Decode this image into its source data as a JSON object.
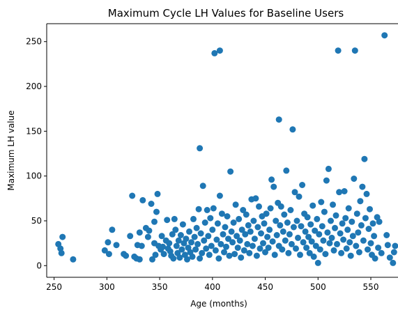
{
  "chart_data": {
    "type": "scatter",
    "title": "Maximum Cycle LH Values for Baseline Users",
    "xlabel": "Age (months)",
    "ylabel": "Maximum LH value",
    "xlim": [
      243,
      583
    ],
    "ylim": [
      -13,
      270
    ],
    "xticks": [
      250,
      300,
      350,
      400,
      450,
      500,
      550
    ],
    "yticks": [
      0,
      50,
      100,
      150,
      200,
      250
    ],
    "grid": false,
    "legend": "none",
    "marker_color": "#1f77b4",
    "series": [
      {
        "points": [
          [
            254,
            24
          ],
          [
            256,
            19
          ],
          [
            257,
            14
          ],
          [
            258,
            32
          ],
          [
            268,
            7
          ],
          [
            298,
            17
          ],
          [
            302,
            13
          ],
          [
            301,
            26
          ],
          [
            305,
            40
          ],
          [
            309,
            23
          ],
          [
            316,
            13
          ],
          [
            318,
            11
          ],
          [
            322,
            33
          ],
          [
            324,
            78
          ],
          [
            326,
            10
          ],
          [
            328,
            8
          ],
          [
            329,
            23
          ],
          [
            331,
            7
          ],
          [
            331,
            37
          ],
          [
            333,
            22
          ],
          [
            334,
            73
          ],
          [
            337,
            42
          ],
          [
            339,
            32
          ],
          [
            340,
            39
          ],
          [
            342,
            69
          ],
          [
            343,
            7
          ],
          [
            345,
            25
          ],
          [
            345,
            49
          ],
          [
            346,
            12
          ],
          [
            347,
            60
          ],
          [
            348,
            80
          ],
          [
            349,
            22
          ],
          [
            351,
            18
          ],
          [
            352,
            33
          ],
          [
            353,
            21
          ],
          [
            354,
            13
          ],
          [
            356,
            28
          ],
          [
            357,
            51
          ],
          [
            358,
            19
          ],
          [
            359,
            25
          ],
          [
            360,
            16
          ],
          [
            361,
            11
          ],
          [
            362,
            35
          ],
          [
            363,
            8
          ],
          [
            364,
            52
          ],
          [
            365,
            40
          ],
          [
            366,
            22
          ],
          [
            367,
            14
          ],
          [
            368,
            28
          ],
          [
            369,
            9
          ],
          [
            370,
            34
          ],
          [
            371,
            18
          ],
          [
            372,
            46
          ],
          [
            373,
            25
          ],
          [
            374,
            12
          ],
          [
            375,
            30
          ],
          [
            376,
            7
          ],
          [
            377,
            20
          ],
          [
            378,
            38
          ],
          [
            379,
            15
          ],
          [
            380,
            26
          ],
          [
            381,
            10
          ],
          [
            382,
            52
          ],
          [
            383,
            32
          ],
          [
            384,
            18
          ],
          [
            385,
            42
          ],
          [
            386,
            24
          ],
          [
            387,
            63
          ],
          [
            388,
            8
          ],
          [
            388,
            131
          ],
          [
            389,
            36
          ],
          [
            390,
            14
          ],
          [
            391,
            89
          ],
          [
            392,
            28
          ],
          [
            393,
            48
          ],
          [
            394,
            19
          ],
          [
            395,
            62
          ],
          [
            396,
            33
          ],
          [
            397,
            12
          ],
          [
            398,
            53
          ],
          [
            399,
            22
          ],
          [
            400,
            40
          ],
          [
            401,
            64
          ],
          [
            402,
            237
          ],
          [
            403,
            17
          ],
          [
            404,
            29
          ],
          [
            405,
            47
          ],
          [
            406,
            8
          ],
          [
            407,
            240
          ],
          [
            407,
            78
          ],
          [
            408,
            24
          ],
          [
            409,
            58
          ],
          [
            410,
            35
          ],
          [
            411,
            15
          ],
          [
            412,
            43
          ],
          [
            413,
            21
          ],
          [
            414,
            55
          ],
          [
            415,
            30
          ],
          [
            416,
            11
          ],
          [
            417,
            105
          ],
          [
            418,
            38
          ],
          [
            419,
            26
          ],
          [
            420,
            48
          ],
          [
            421,
            13
          ],
          [
            422,
            68
          ],
          [
            423,
            33
          ],
          [
            424,
            20
          ],
          [
            425,
            52
          ],
          [
            426,
            28
          ],
          [
            427,
            9
          ],
          [
            428,
            40
          ],
          [
            429,
            62
          ],
          [
            430,
            17
          ],
          [
            431,
            35
          ],
          [
            432,
            57
          ],
          [
            433,
            24
          ],
          [
            434,
            45
          ],
          [
            435,
            14
          ],
          [
            436,
            38
          ],
          [
            437,
            74
          ],
          [
            438,
            22
          ],
          [
            439,
            50
          ],
          [
            440,
            30
          ],
          [
            441,
            75
          ],
          [
            442,
            11
          ],
          [
            443,
            43
          ],
          [
            444,
            66
          ],
          [
            445,
            19
          ],
          [
            446,
            36
          ],
          [
            447,
            55
          ],
          [
            448,
            25
          ],
          [
            449,
            47
          ],
          [
            450,
            15
          ],
          [
            451,
            58
          ],
          [
            452,
            32
          ],
          [
            453,
            20
          ],
          [
            454,
            40
          ],
          [
            455,
            64
          ],
          [
            456,
            96
          ],
          [
            457,
            27
          ],
          [
            458,
            88
          ],
          [
            459,
            12
          ],
          [
            460,
            50
          ],
          [
            461,
            34
          ],
          [
            462,
            70
          ],
          [
            463,
            22
          ],
          [
            463,
            163
          ],
          [
            464,
            45
          ],
          [
            465,
            66
          ],
          [
            466,
            18
          ],
          [
            467,
            38
          ],
          [
            468,
            57
          ],
          [
            469,
            28
          ],
          [
            470,
            106
          ],
          [
            471,
            48
          ],
          [
            472,
            14
          ],
          [
            473,
            35
          ],
          [
            474,
            62
          ],
          [
            475,
            24
          ],
          [
            476,
            152
          ],
          [
            477,
            43
          ],
          [
            478,
            82
          ],
          [
            479,
            19
          ],
          [
            480,
            50
          ],
          [
            481,
            31
          ],
          [
            482,
            77
          ],
          [
            483,
            12
          ],
          [
            484,
            44
          ],
          [
            485,
            90
          ],
          [
            486,
            26
          ],
          [
            487,
            58
          ],
          [
            488,
            38
          ],
          [
            489,
            20
          ],
          [
            490,
            54
          ],
          [
            491,
            32
          ],
          [
            492,
            14
          ],
          [
            493,
            46
          ],
          [
            494,
            27
          ],
          [
            495,
            67
          ],
          [
            496,
            10
          ],
          [
            497,
            39
          ],
          [
            498,
            22
          ],
          [
            499,
            52
          ],
          [
            500,
            3
          ],
          [
            501,
            35
          ],
          [
            502,
            18
          ],
          [
            503,
            71
          ],
          [
            504,
            44
          ],
          [
            505,
            28
          ],
          [
            506,
            60
          ],
          [
            507,
            13
          ],
          [
            508,
            95
          ],
          [
            509,
            37
          ],
          [
            510,
            108
          ],
          [
            511,
            25
          ],
          [
            512,
            50
          ],
          [
            513,
            31
          ],
          [
            514,
            68
          ],
          [
            515,
            17
          ],
          [
            516,
            42
          ],
          [
            517,
            56
          ],
          [
            518,
            24
          ],
          [
            519,
            240
          ],
          [
            520,
            82
          ],
          [
            521,
            36
          ],
          [
            522,
            14
          ],
          [
            523,
            47
          ],
          [
            524,
            29
          ],
          [
            525,
            83
          ],
          [
            526,
            53
          ],
          [
            527,
            19
          ],
          [
            528,
            40
          ],
          [
            529,
            64
          ],
          [
            530,
            26
          ],
          [
            531,
            11
          ],
          [
            532,
            49
          ],
          [
            533,
            33
          ],
          [
            534,
            97
          ],
          [
            535,
            240
          ],
          [
            536,
            22
          ],
          [
            537,
            58
          ],
          [
            538,
            37
          ],
          [
            539,
            15
          ],
          [
            540,
            72
          ],
          [
            541,
            45
          ],
          [
            542,
            88
          ],
          [
            543,
            28
          ],
          [
            544,
            119
          ],
          [
            545,
            53
          ],
          [
            546,
            80
          ],
          [
            547,
            18
          ],
          [
            548,
            41
          ],
          [
            549,
            63
          ],
          [
            550,
            25
          ],
          [
            551,
            12
          ],
          [
            552,
            47
          ],
          [
            553,
            33
          ],
          [
            554,
            8
          ],
          [
            556,
            54
          ],
          [
            557,
            20
          ],
          [
            558,
            49
          ],
          [
            560,
            14
          ],
          [
            563,
            257
          ],
          [
            565,
            34
          ],
          [
            566,
            23
          ],
          [
            568,
            9
          ],
          [
            571,
            3
          ],
          [
            572,
            15
          ],
          [
            573,
            22
          ]
        ]
      }
    ]
  }
}
